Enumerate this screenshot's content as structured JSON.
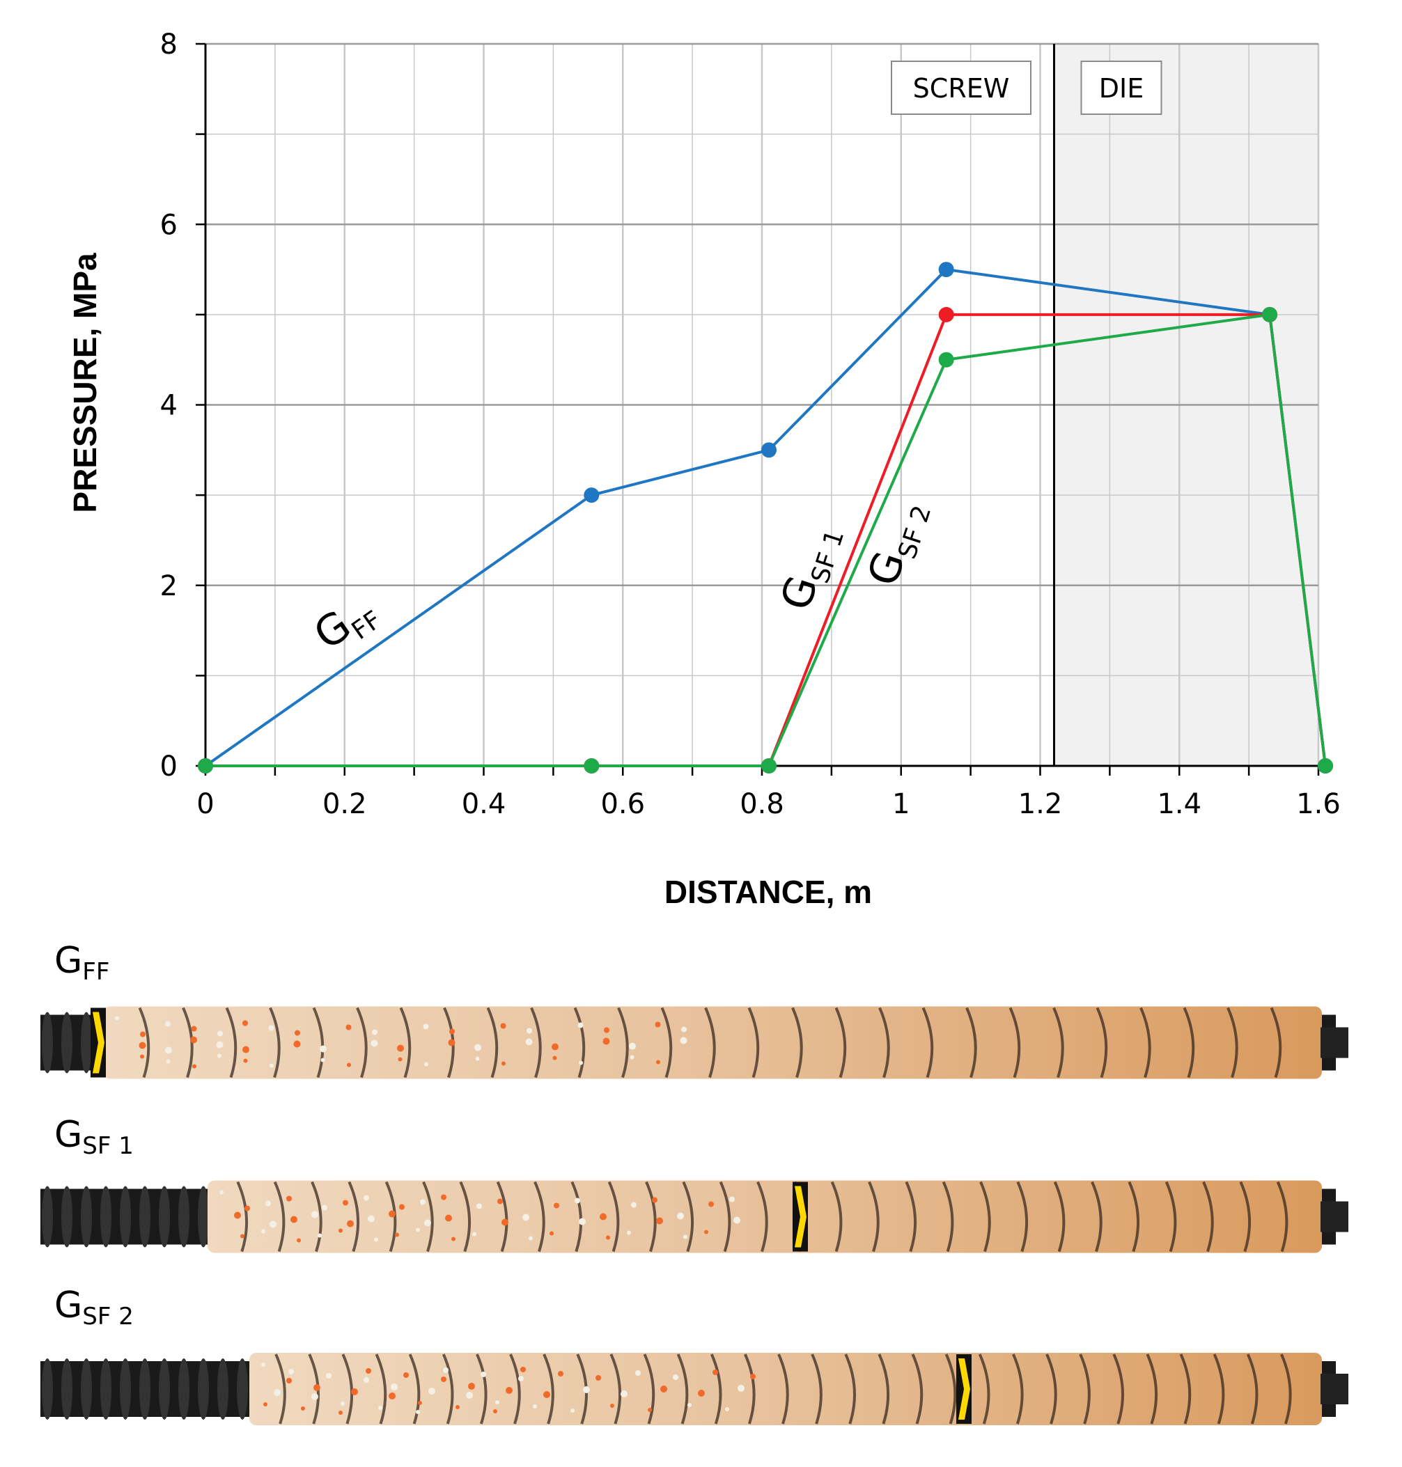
{
  "chart_data": {
    "type": "line",
    "xlabel": "DISTANCE, m",
    "ylabel": "PRESSURE, MPa",
    "xlim": [
      0,
      1.6
    ],
    "ylim": [
      0,
      8
    ],
    "x_ticks": [
      "0",
      "0.2",
      "0.4",
      "0.6",
      "0.8",
      "1",
      "1.2",
      "1.4",
      "1.6"
    ],
    "y_ticks": [
      "0",
      "2",
      "4",
      "6",
      "8"
    ],
    "grid": true,
    "zones": [
      {
        "label": "SCREW",
        "range": [
          0,
          1.22
        ]
      },
      {
        "label": "DIE",
        "range": [
          1.22,
          1.6
        ],
        "shaded": true
      }
    ],
    "series": [
      {
        "name": "G_FF",
        "main": "G",
        "sub": "FF",
        "color": "#1f77c4",
        "x": [
          0,
          0.555,
          0.81,
          1.065,
          1.53,
          1.61
        ],
        "y": [
          0,
          3.0,
          3.5,
          5.5,
          5.0,
          0
        ]
      },
      {
        "name": "G_SF 1",
        "main": "G",
        "sub": "SF 1",
        "color": "#ee1c24",
        "x": [
          0,
          0.555,
          0.81,
          1.065,
          1.53,
          1.61
        ],
        "y": [
          0,
          0,
          0,
          5.0,
          5.0,
          0
        ]
      },
      {
        "name": "G_SF 2",
        "main": "G",
        "sub": "SF 2",
        "color": "#1faa4a",
        "x": [
          0,
          0.555,
          0.81,
          1.065,
          1.53,
          1.61
        ],
        "y": [
          0,
          0,
          0,
          4.5,
          5.0,
          0
        ]
      }
    ]
  },
  "screws": [
    {
      "main": "G",
      "sub": "FF"
    },
    {
      "main": "G",
      "sub": "SF 1"
    },
    {
      "main": "G",
      "sub": "SF 2"
    }
  ],
  "colors": {
    "die_zone": "#f1f1f1",
    "grid": "#c8c8c8",
    "marker_yellow": "#ffd800",
    "dough_light": "#f0d9bf",
    "dough_dark": "#d99a5e",
    "screw_steel": "#1a1a1a"
  }
}
